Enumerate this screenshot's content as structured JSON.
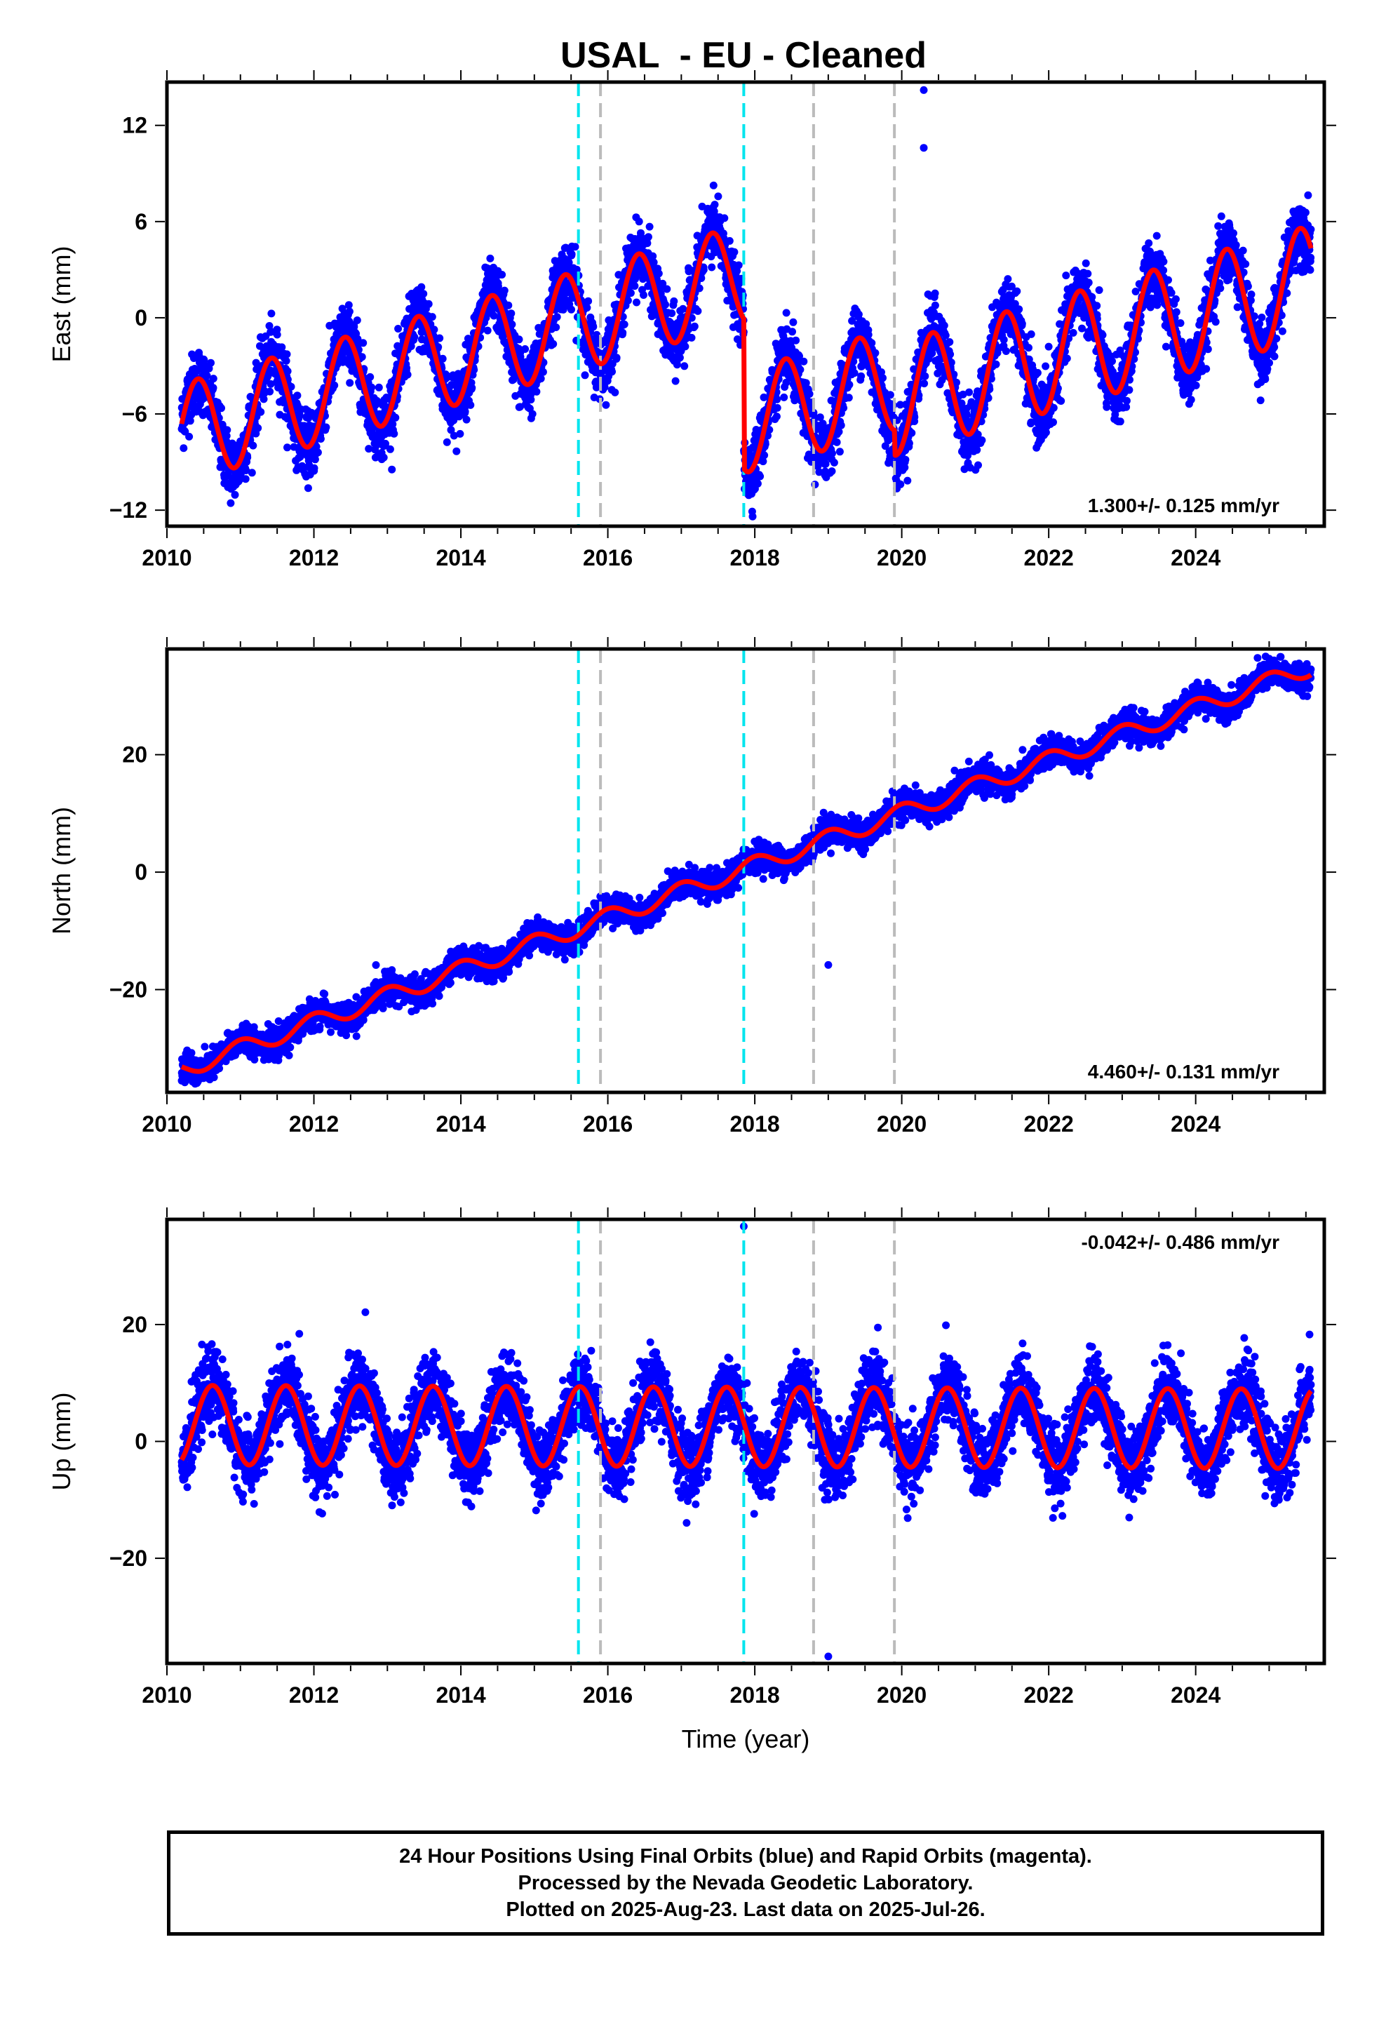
{
  "title": "USAL  - EU - Cleaned",
  "footer": {
    "line1": "24 Hour Positions Using Final Orbits (blue) and Rapid Orbits (magenta).",
    "line2": "Processed by the Nevada Geodetic Laboratory.",
    "line3": "Plotted on 2025-Aug-23. Last data on 2025-Jul-26."
  },
  "colors": {
    "data_points": "#0000ff",
    "model_line": "#ff0000",
    "antenna_change_line": "#00e5ee",
    "equipment_change_line": "#bbbbbb"
  },
  "chart_data": [
    {
      "type": "scatter",
      "component": "East",
      "ylabel": "East (mm)",
      "xlabel": "",
      "xlim": [
        2010.0,
        2025.75
      ],
      "ylim": [
        -13,
        14.7
      ],
      "xticks": [
        2010,
        2012,
        2014,
        2016,
        2018,
        2020,
        2022,
        2024
      ],
      "yticks": [
        -12,
        -6,
        0,
        6,
        12
      ],
      "rate_label": "1.300+/- 0.125 mm/yr",
      "rate_label_position": "bottom-right",
      "data_range": [
        2010.2,
        2025.57
      ],
      "model": {
        "segments": [
          {
            "start": 2010.2,
            "end": 2017.85,
            "offset": -7.2,
            "rate": 1.3,
            "amplitude": 3.1,
            "peak_phase": 0.42
          },
          {
            "start": 2017.85,
            "end": 2019.9,
            "offset": -6.5,
            "rate": 1.3,
            "amplitude": 3.2,
            "peak_phase": 0.42
          },
          {
            "start": 2019.9,
            "end": 2025.57,
            "offset": -5.1,
            "rate": 1.3,
            "amplitude": 3.5,
            "peak_phase": 0.42
          }
        ],
        "noise_sd": 1.0,
        "outliers": [
          [
            2020.3,
            14.2
          ],
          [
            2020.3,
            10.6
          ],
          [
            2022.0,
            -1.8
          ],
          [
            2023.2,
            -0.2
          ]
        ]
      },
      "vertical_lines": [
        {
          "x": 2015.6,
          "kind": "antenna"
        },
        {
          "x": 2015.9,
          "kind": "equipment"
        },
        {
          "x": 2017.85,
          "kind": "antenna"
        },
        {
          "x": 2018.8,
          "kind": "equipment"
        },
        {
          "x": 2019.9,
          "kind": "equipment"
        }
      ]
    },
    {
      "type": "scatter",
      "component": "North",
      "ylabel": "North (mm)",
      "xlabel": "",
      "xlim": [
        2010.0,
        2025.75
      ],
      "ylim": [
        -37.5,
        38
      ],
      "xticks": [
        2010,
        2012,
        2014,
        2016,
        2018,
        2020,
        2022,
        2024
      ],
      "yticks": [
        -20,
        0,
        20
      ],
      "rate_label": "4.460+/- 0.131 mm/yr",
      "rate_label_position": "bottom-right",
      "data_range": [
        2010.2,
        2025.57
      ],
      "model": {
        "segments": [
          {
            "start": 2010.2,
            "end": 2025.57,
            "offset": -33.6,
            "rate": 4.46,
            "amplitude": 1.5,
            "peak_phase": 0.0
          }
        ],
        "noise_sd": 1.2,
        "outliers": [
          [
            2019.0,
            -15.8
          ]
        ]
      },
      "vertical_lines": [
        {
          "x": 2015.6,
          "kind": "antenna"
        },
        {
          "x": 2015.9,
          "kind": "equipment"
        },
        {
          "x": 2017.85,
          "kind": "antenna"
        },
        {
          "x": 2018.8,
          "kind": "equipment"
        },
        {
          "x": 2019.9,
          "kind": "equipment"
        }
      ]
    },
    {
      "type": "scatter",
      "component": "Up",
      "ylabel": "Up (mm)",
      "xlabel": "Time (year)",
      "xlim": [
        2010.0,
        2025.75
      ],
      "ylim": [
        -38,
        38
      ],
      "xticks": [
        2010,
        2012,
        2014,
        2016,
        2018,
        2020,
        2022,
        2024
      ],
      "yticks": [
        -20,
        0,
        20
      ],
      "rate_label": "-0.042+/- 0.486 mm/yr",
      "rate_label_position": "top-right",
      "data_range": [
        2010.2,
        2025.57
      ],
      "model": {
        "segments": [
          {
            "start": 2010.2,
            "end": 2025.57,
            "offset": 2.8,
            "rate": -0.042,
            "amplitude": 6.8,
            "peak_phase": 0.62
          }
        ],
        "noise_sd": 3.0,
        "outliers": [
          [
            2017.85,
            36.8
          ],
          [
            2019.0,
            -36.8
          ],
          [
            2012.7,
            22.1
          ],
          [
            2025.55,
            18.3
          ]
        ]
      },
      "vertical_lines": [
        {
          "x": 2015.6,
          "kind": "antenna"
        },
        {
          "x": 2015.9,
          "kind": "equipment"
        },
        {
          "x": 2017.85,
          "kind": "antenna"
        },
        {
          "x": 2018.8,
          "kind": "equipment"
        },
        {
          "x": 2019.9,
          "kind": "equipment"
        }
      ]
    }
  ]
}
